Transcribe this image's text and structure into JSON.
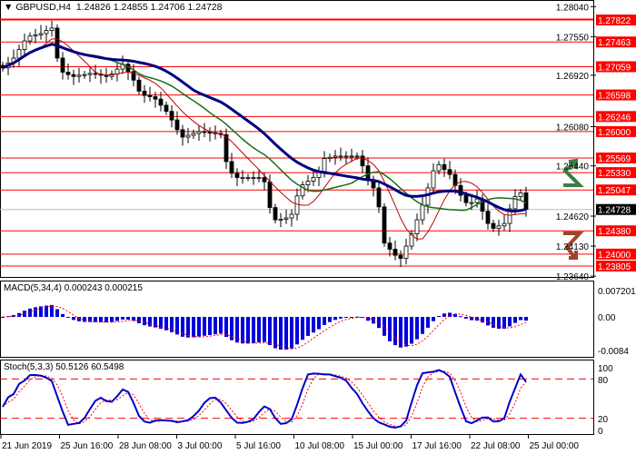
{
  "header": {
    "symbol": "GBPUSD,H4",
    "open": "1.24826",
    "high": "1.24855",
    "low": "1.24706",
    "close": "1.24728"
  },
  "macd": {
    "label": "MACD(5,34,4)",
    "main": "0.000243",
    "signal": "0.000215",
    "axis": [
      "0.007201",
      "0.00",
      "-0.0084"
    ]
  },
  "stoch": {
    "label": "Stoch(5,3,3)",
    "main": "50.5126",
    "signal": "60.5498",
    "axis": [
      "100",
      "80",
      "20",
      "0"
    ],
    "levels": [
      80,
      20
    ]
  },
  "colors": {
    "level": "#ff0000",
    "ma_fast": "#c00000",
    "ma_mid": "#1a6e1a",
    "ma_slow": "#000080",
    "bars": "#0000dd",
    "up_arrow": "#3a7d44",
    "down_arrow": "#a0442a",
    "current": "#000000"
  },
  "chart_data": {
    "type": "candlestick",
    "symbol": "GBPUSD",
    "timeframe": "H4",
    "ylim": [
      1.2364,
      1.2804
    ],
    "price_ticks": [
      "1.28040",
      "1.27550",
      "1.26920",
      "1.26080",
      "1.25440",
      "1.24620",
      "1.24130",
      "1.23640"
    ],
    "levels": [
      "1.27822",
      "1.27463",
      "1.27059",
      "1.26598",
      "1.26246",
      "1.26000",
      "1.25569",
      "1.25330",
      "1.25047",
      "1.24380",
      "1.24000",
      "1.23805"
    ],
    "current_price": "1.24728",
    "time_labels": [
      "21 Jun 2019",
      "25 Jun 16:00",
      "28 Jun 08:00",
      "3 Jul 00:00",
      "5 Jul 16:00",
      "10 Jul 08:00",
      "15 Jul 00:00",
      "17 Jul 16:00",
      "22 Jul 08:00",
      "25 Jul 00:00"
    ],
    "closes": [
      1.2704,
      1.2712,
      1.272,
      1.2734,
      1.2748,
      1.2756,
      1.2758,
      1.276,
      1.2765,
      1.2769,
      1.272,
      1.2697,
      1.2693,
      1.269,
      1.2692,
      1.2693,
      1.2695,
      1.2694,
      1.2692,
      1.269,
      1.2694,
      1.2702,
      1.271,
      1.2698,
      1.2684,
      1.2666,
      1.2659,
      1.2657,
      1.2653,
      1.2643,
      1.2633,
      1.2619,
      1.2603,
      1.2591,
      1.2594,
      1.2597,
      1.26,
      1.2599,
      1.2598,
      1.2597,
      1.2595,
      1.2551,
      1.2532,
      1.2525,
      1.2525,
      1.2525,
      1.2525,
      1.2525,
      1.2518,
      1.2476,
      1.2456,
      1.2457,
      1.2459,
      1.2465,
      1.2495,
      1.2513,
      1.2519,
      1.2525,
      1.2535,
      1.2556,
      1.2558,
      1.256,
      1.256,
      1.256,
      1.256,
      1.256,
      1.2544,
      1.252,
      1.2508,
      1.2477,
      1.2418,
      1.2408,
      1.2398,
      1.2393,
      1.2413,
      1.2433,
      1.2456,
      1.248,
      1.2508,
      1.2536,
      1.2546,
      1.2538,
      1.253,
      1.2512,
      1.2496,
      1.2484,
      1.2484,
      1.249,
      1.247,
      1.245,
      1.2442,
      1.2446,
      1.245,
      1.2474,
      1.2494,
      1.25,
      1.2473
    ]
  }
}
